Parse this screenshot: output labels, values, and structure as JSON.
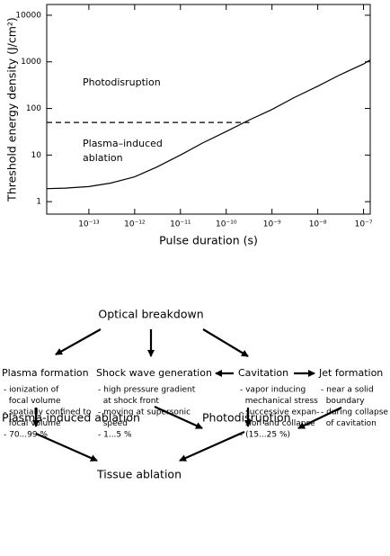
{
  "chart_data": {
    "type": "line",
    "y_label": "Threshold energy density (J/cm²)",
    "x_label": "Pulse duration (s)",
    "annotations": [
      [
        "Photodisruption"
      ],
      [
        "Plasma–induced",
        "ablation"
      ]
    ],
    "log_x": true,
    "log_y": true,
    "color": "#000000",
    "xlim": [
      1.2e-14,
      1.4e-07
    ],
    "ylim": [
      0.54,
      17000
    ],
    "xticks": [
      {
        "value": 1e-13,
        "label": "10⁻¹³"
      },
      {
        "value": 1e-12,
        "label": "10⁻¹²"
      },
      {
        "value": 1e-11,
        "label": "10⁻¹¹"
      },
      {
        "value": 1e-10,
        "label": "10⁻¹⁰"
      },
      {
        "value": 1e-09,
        "label": "10⁻⁹"
      },
      {
        "value": 1e-08,
        "label": "10⁻⁸"
      },
      {
        "value": 1e-07,
        "label": "10⁻⁷"
      }
    ],
    "yticks": [
      1,
      10,
      100,
      1000,
      10000
    ],
    "series": [
      {
        "style": "solid",
        "x": [
          1.2e-14,
          3e-14,
          1e-13,
          3e-13,
          1e-12,
          3e-12,
          1e-11,
          3e-11,
          1e-10,
          3e-10,
          1e-09,
          3e-09,
          1e-08,
          3e-08,
          1e-07,
          1.4e-07
        ],
        "values": [
          1.9,
          1.95,
          2.1,
          2.5,
          3.4,
          5.5,
          10,
          18,
          32,
          55,
          95,
          170,
          300,
          520,
          900,
          1100
        ]
      },
      {
        "style": "dashed",
        "x": [
          1.2e-14,
          3.2e-10
        ],
        "values": [
          50,
          50
        ]
      }
    ]
  },
  "diagram": {
    "nodes": [
      {
        "title": "Optical breakdown",
        "lines": []
      },
      {
        "title": "Plasma formation",
        "lines": [
          "- ionization of",
          "  focal volume",
          "- spatially confined to",
          "  focal volume",
          "- 70...99 %"
        ]
      },
      {
        "title": "Shock wave generation",
        "lines": [
          "- high pressure gradient",
          "  at shock front",
          "- moving at supersonic",
          "  speed",
          "- 1...5 %"
        ]
      },
      {
        "title": "Cavitation",
        "lines": [
          "- vapor inducing",
          "  mechanical stress",
          "- successive expan-",
          "  sion and collapse",
          "- (15...25 %)"
        ]
      },
      {
        "title": "Jet formation",
        "lines": [
          "- near a solid",
          "  boundary",
          "- during collapse",
          "  of cavitation"
        ]
      },
      {
        "title": "Plasma-induced ablation",
        "lines": []
      },
      {
        "title": "Photodisruption",
        "lines": []
      },
      {
        "title": "Tissue ablation",
        "lines": []
      }
    ]
  }
}
